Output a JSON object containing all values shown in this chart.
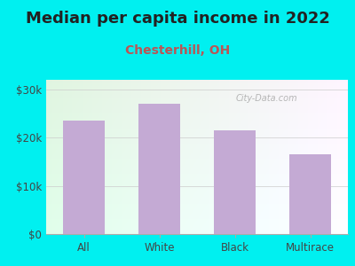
{
  "title": "Median per capita income in 2022",
  "subtitle": "Chesterhill, OH",
  "categories": [
    "All",
    "White",
    "Black",
    "Multirace"
  ],
  "values": [
    23500,
    27000,
    21500,
    16500
  ],
  "bar_color": "#c4aad4",
  "title_fontsize": 13,
  "subtitle_fontsize": 10,
  "title_color": "#222222",
  "subtitle_color": "#bb5555",
  "background_color": "#00f0f0",
  "ylim": [
    0,
    32000
  ],
  "yticks": [
    0,
    10000,
    20000,
    30000
  ],
  "ytick_labels": [
    "$0",
    "$10k",
    "$20k",
    "$30k"
  ],
  "watermark": "City-Data.com"
}
